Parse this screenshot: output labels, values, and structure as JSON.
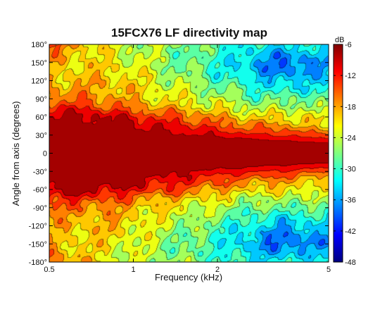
{
  "chart_data": {
    "type": "heatmap",
    "title": "15FCX76 LF directivity map",
    "xlabel": "Frequency (kHz)",
    "ylabel": "Angle from axis (degrees)",
    "x_scale": "log",
    "xlim": [
      0.5,
      5
    ],
    "ylim": [
      -180,
      180
    ],
    "x_ticks": [
      0.5,
      1,
      2,
      5
    ],
    "x_tick_labels": [
      "0.5",
      "1",
      "2",
      "5"
    ],
    "y_ticks": [
      -180,
      -150,
      -120,
      -90,
      -60,
      -30,
      0,
      30,
      60,
      90,
      120,
      150,
      180
    ],
    "y_tick_labels": [
      "-180°",
      "-150°",
      "-120°",
      "-90°",
      "-60°",
      "-30°",
      "0",
      "30°",
      "60°",
      "90°",
      "120°",
      "150°",
      "180°"
    ],
    "colorbar": {
      "unit_label": "dB",
      "range": [
        -48,
        -6
      ],
      "ticks": [
        -6,
        -12,
        -18,
        -24,
        -30,
        -36,
        -42,
        -48
      ],
      "tick_labels": [
        "-6",
        "-12",
        "-18",
        "-24",
        "-30",
        "-36",
        "-42",
        "-48"
      ],
      "colormap": "jet",
      "contour_levels": [
        -45,
        -42,
        -39,
        -36,
        -33,
        -30,
        -27,
        -24,
        -21,
        -18,
        -15,
        -12,
        -9
      ]
    },
    "frequencies_khz": [
      0.5,
      0.6,
      0.7,
      0.8,
      0.9,
      1.0,
      1.2,
      1.4,
      1.6,
      1.8,
      2.0,
      2.5,
      3.0,
      3.5,
      4.0,
      4.5,
      5.0
    ],
    "angles_deg": [
      0,
      15,
      30,
      45,
      60,
      75,
      90,
      105,
      120,
      135,
      150,
      165,
      180
    ],
    "levels_db": [
      [
        -6,
        -6,
        -6,
        -6,
        -6,
        -6,
        -6,
        -6,
        -6,
        -6,
        -6,
        -6,
        -6,
        -6,
        -6,
        -6,
        -6
      ],
      [
        -6,
        -6,
        -6,
        -6,
        -6,
        -6,
        -6,
        -6,
        -6,
        -6,
        -6,
        -6,
        -7,
        -7,
        -8,
        -8,
        -8
      ],
      [
        -6,
        -6,
        -6,
        -6,
        -6,
        -6,
        -7,
        -8,
        -9,
        -9,
        -10,
        -11,
        -12,
        -12,
        -13,
        -14,
        -14
      ],
      [
        -6,
        -6,
        -6,
        -6,
        -7,
        -8,
        -10,
        -11,
        -12,
        -13,
        -14,
        -16,
        -17,
        -17,
        -19,
        -20,
        -21
      ],
      [
        -8,
        -8,
        -8,
        -9,
        -10,
        -11,
        -13,
        -14,
        -15,
        -17,
        -18,
        -20,
        -21,
        -21,
        -21,
        -22,
        -23
      ],
      [
        -12,
        -12,
        -13,
        -14,
        -15,
        -16,
        -18,
        -19,
        -20,
        -21,
        -22,
        -24,
        -25,
        -25,
        -24,
        -25,
        -26
      ],
      [
        -16,
        -16,
        -17,
        -17,
        -18,
        -19,
        -21,
        -22,
        -23,
        -24,
        -24,
        -27,
        -28,
        -28,
        -27,
        -28,
        -29
      ],
      [
        -18,
        -18,
        -18,
        -19,
        -19,
        -20,
        -22,
        -23,
        -24,
        -25,
        -27,
        -29,
        -31,
        -32,
        -31,
        -31,
        -31
      ],
      [
        -19,
        -19,
        -19,
        -19,
        -20,
        -21,
        -23,
        -25,
        -26,
        -27,
        -29,
        -31,
        -33,
        -35,
        -34,
        -33,
        -33
      ],
      [
        -20,
        -20,
        -20,
        -20,
        -21,
        -22,
        -24,
        -26,
        -27,
        -28,
        -31,
        -33,
        -36,
        -37,
        -37,
        -35,
        -35
      ],
      [
        -19,
        -20,
        -21,
        -21,
        -22,
        -23,
        -25,
        -27,
        -28,
        -29,
        -30,
        -34,
        -37,
        -39,
        -38,
        -36,
        -36
      ],
      [
        -17,
        -19,
        -21,
        -22,
        -23,
        -24,
        -25,
        -27,
        -28,
        -29,
        -30,
        -33,
        -35,
        -36,
        -35,
        -34,
        -34
      ],
      [
        -15,
        -18,
        -20,
        -22,
        -23,
        -24,
        -25,
        -26,
        -27,
        -28,
        -29,
        -31,
        -32,
        -32,
        -32,
        -31,
        -31
      ]
    ]
  }
}
